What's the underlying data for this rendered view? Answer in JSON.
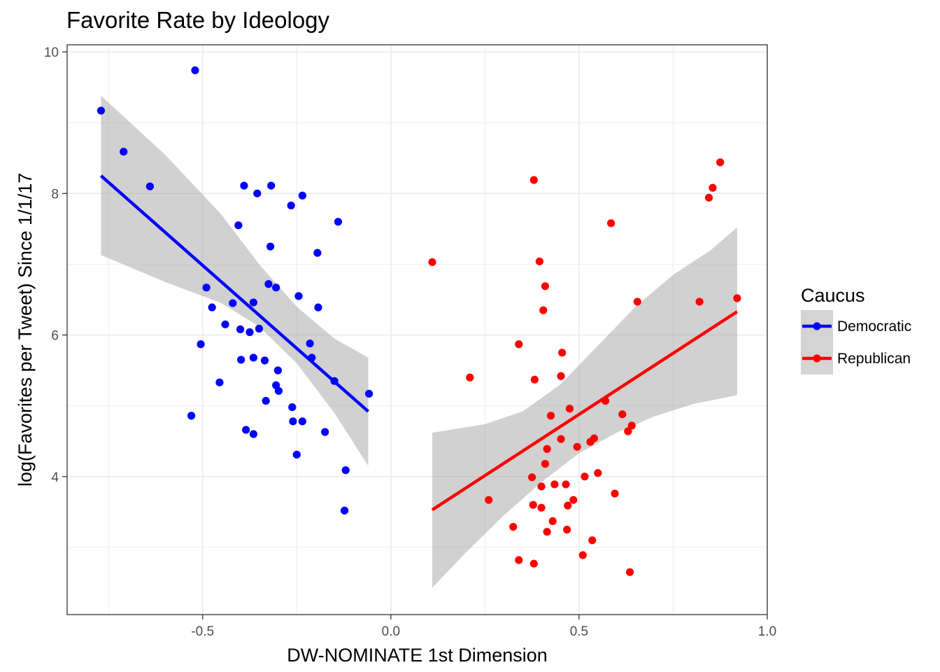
{
  "chart_data": {
    "type": "scatter",
    "title": "Favorite Rate by Ideology",
    "xlabel": "DW-NOMINATE 1st Dimension",
    "ylabel": "log(Favorites per Tweet) Since 1/1/17",
    "xlim": [
      -0.86,
      1.0
    ],
    "ylim": [
      2.05,
      10.1
    ],
    "x_ticks": [
      -0.5,
      0.0,
      0.5,
      1.0
    ],
    "x_tick_labels": [
      "-0.5",
      "0.0",
      "0.5",
      "1.0"
    ],
    "y_ticks": [
      4,
      6,
      8,
      10
    ],
    "y_tick_labels": [
      "4",
      "6",
      "8",
      "10"
    ],
    "grid": true,
    "legend": {
      "title": "Caucus",
      "position": "right",
      "entries": [
        {
          "label": "Democratic",
          "color": "#0000ff"
        },
        {
          "label": "Republican",
          "color": "#ff0000"
        }
      ]
    },
    "series": [
      {
        "name": "Democratic",
        "color": "#0000ff",
        "points": [
          [
            -0.77,
            9.17
          ],
          [
            -0.71,
            8.59
          ],
          [
            -0.64,
            8.1
          ],
          [
            -0.52,
            9.74
          ],
          [
            -0.53,
            4.86
          ],
          [
            -0.505,
            5.87
          ],
          [
            -0.49,
            6.67
          ],
          [
            -0.475,
            6.39
          ],
          [
            -0.455,
            5.33
          ],
          [
            -0.44,
            6.15
          ],
          [
            -0.42,
            6.45
          ],
          [
            -0.405,
            7.55
          ],
          [
            -0.4,
            6.08
          ],
          [
            -0.398,
            5.65
          ],
          [
            -0.39,
            8.11
          ],
          [
            -0.385,
            4.66
          ],
          [
            -0.375,
            6.04
          ],
          [
            -0.365,
            4.6
          ],
          [
            -0.365,
            6.46
          ],
          [
            -0.365,
            5.68
          ],
          [
            -0.355,
            8.0
          ],
          [
            -0.35,
            6.09
          ],
          [
            -0.335,
            5.64
          ],
          [
            -0.332,
            5.07
          ],
          [
            -0.325,
            6.72
          ],
          [
            -0.32,
            7.25
          ],
          [
            -0.318,
            8.11
          ],
          [
            -0.305,
            6.67
          ],
          [
            -0.305,
            5.29
          ],
          [
            -0.3,
            5.5
          ],
          [
            -0.298,
            5.21
          ],
          [
            -0.265,
            7.83
          ],
          [
            -0.262,
            4.98
          ],
          [
            -0.26,
            4.78
          ],
          [
            -0.25,
            4.31
          ],
          [
            -0.245,
            6.55
          ],
          [
            -0.235,
            7.97
          ],
          [
            -0.235,
            4.78
          ],
          [
            -0.215,
            5.88
          ],
          [
            -0.21,
            5.68
          ],
          [
            -0.195,
            7.16
          ],
          [
            -0.193,
            6.39
          ],
          [
            -0.175,
            4.63
          ],
          [
            -0.15,
            5.35
          ],
          [
            -0.14,
            7.6
          ],
          [
            -0.12,
            4.09
          ],
          [
            -0.123,
            3.52
          ],
          [
            -0.058,
            5.17
          ]
        ],
        "fit_line": [
          [
            -0.77,
            8.25
          ],
          [
            -0.06,
            4.92
          ]
        ],
        "ci_upper": [
          [
            -0.77,
            9.38
          ],
          [
            -0.6,
            8.55
          ],
          [
            -0.45,
            7.7
          ],
          [
            -0.35,
            7.0
          ],
          [
            -0.25,
            6.4
          ],
          [
            -0.15,
            5.95
          ],
          [
            -0.06,
            5.68
          ]
        ],
        "ci_lower": [
          [
            -0.77,
            7.13
          ],
          [
            -0.6,
            6.75
          ],
          [
            -0.45,
            6.45
          ],
          [
            -0.35,
            6.12
          ],
          [
            -0.25,
            5.6
          ],
          [
            -0.15,
            4.9
          ],
          [
            -0.06,
            4.15
          ]
        ]
      },
      {
        "name": "Republican",
        "color": "#ff0000",
        "points": [
          [
            0.11,
            7.03
          ],
          [
            0.21,
            5.4
          ],
          [
            0.26,
            3.67
          ],
          [
            0.325,
            3.29
          ],
          [
            0.34,
            2.82
          ],
          [
            0.34,
            5.87
          ],
          [
            0.375,
            3.99
          ],
          [
            0.378,
            3.6
          ],
          [
            0.38,
            8.19
          ],
          [
            0.38,
            2.77
          ],
          [
            0.382,
            5.37
          ],
          [
            0.395,
            7.04
          ],
          [
            0.4,
            3.86
          ],
          [
            0.4,
            3.56
          ],
          [
            0.405,
            6.35
          ],
          [
            0.41,
            6.69
          ],
          [
            0.41,
            4.18
          ],
          [
            0.415,
            4.39
          ],
          [
            0.415,
            3.22
          ],
          [
            0.425,
            4.86
          ],
          [
            0.43,
            3.37
          ],
          [
            0.435,
            3.89
          ],
          [
            0.452,
            4.53
          ],
          [
            0.452,
            5.42
          ],
          [
            0.455,
            5.75
          ],
          [
            0.465,
            3.89
          ],
          [
            0.468,
            3.25
          ],
          [
            0.47,
            3.59
          ],
          [
            0.475,
            4.96
          ],
          [
            0.485,
            3.67
          ],
          [
            0.495,
            4.42
          ],
          [
            0.51,
            2.89
          ],
          [
            0.515,
            4.0
          ],
          [
            0.53,
            4.49
          ],
          [
            0.535,
            3.1
          ],
          [
            0.54,
            4.54
          ],
          [
            0.55,
            4.05
          ],
          [
            0.57,
            5.07
          ],
          [
            0.585,
            7.58
          ],
          [
            0.595,
            3.76
          ],
          [
            0.615,
            4.88
          ],
          [
            0.63,
            4.64
          ],
          [
            0.635,
            2.65
          ],
          [
            0.64,
            4.72
          ],
          [
            0.655,
            6.47
          ],
          [
            0.82,
            6.47
          ],
          [
            0.845,
            7.94
          ],
          [
            0.855,
            8.08
          ],
          [
            0.875,
            8.44
          ],
          [
            0.92,
            6.52
          ]
        ],
        "fit_line": [
          [
            0.11,
            3.53
          ],
          [
            0.92,
            6.33
          ]
        ],
        "ci_upper": [
          [
            0.11,
            4.62
          ],
          [
            0.25,
            4.74
          ],
          [
            0.35,
            4.92
          ],
          [
            0.45,
            5.3
          ],
          [
            0.55,
            5.85
          ],
          [
            0.65,
            6.4
          ],
          [
            0.75,
            6.85
          ],
          [
            0.85,
            7.2
          ],
          [
            0.92,
            7.52
          ]
        ],
        "ci_lower": [
          [
            0.11,
            2.43
          ],
          [
            0.2,
            2.93
          ],
          [
            0.3,
            3.45
          ],
          [
            0.4,
            3.92
          ],
          [
            0.5,
            4.33
          ],
          [
            0.6,
            4.62
          ],
          [
            0.7,
            4.85
          ],
          [
            0.8,
            5.02
          ],
          [
            0.92,
            5.15
          ]
        ]
      }
    ]
  }
}
